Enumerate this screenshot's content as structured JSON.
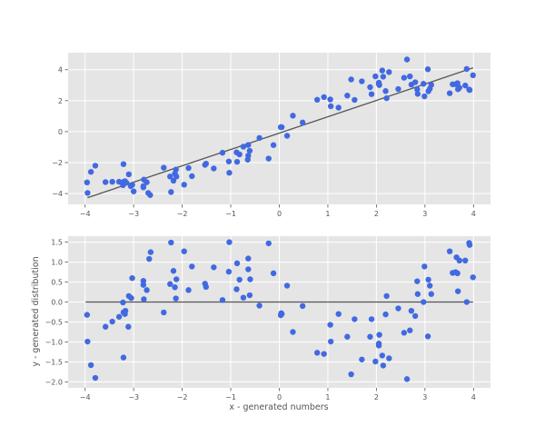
{
  "chart_data": [
    {
      "type": "scatter",
      "title": "",
      "xlabel": "",
      "ylabel": "",
      "xlim": [
        -4.35,
        4.35
      ],
      "ylim": [
        -4.7,
        5.1
      ],
      "xticks": [
        -4,
        -3,
        -2,
        -1,
        0,
        1,
        2,
        3,
        4
      ],
      "yticks": [
        -4,
        -2,
        0,
        2,
        4
      ],
      "grid": true,
      "style": "ggplot",
      "marker_color": "#4169e1",
      "line": {
        "name": "fit",
        "color": "#555555",
        "x": [
          -3.95,
          3.99
        ],
        "y": [
          -4.27,
          4.12
        ]
      },
      "x": [
        -3.96,
        -3.95,
        -3.88,
        -3.79,
        -3.58,
        -3.44,
        -3.3,
        -3.22,
        -3.21,
        -3.18,
        -3.21,
        -3.15,
        -3.1,
        -3.06,
        -3.03,
        -3.0,
        -2.8,
        -2.8,
        -2.79,
        -2.73,
        -2.7,
        -2.66,
        -2.38,
        -2.25,
        -2.23,
        -2.18,
        -2.15,
        -2.13,
        -2.12,
        -1.96,
        -1.87,
        -1.8,
        -1.53,
        -1.51,
        -1.35,
        -1.17,
        -1.04,
        -1.03,
        -0.88,
        -0.87,
        -0.82,
        -0.74,
        -0.64,
        -0.64,
        -0.61,
        -0.65,
        -0.41,
        -0.22,
        -0.12,
        0.03,
        0.05,
        0.16,
        0.28,
        0.48,
        0.78,
        0.92,
        1.05,
        1.06,
        1.22,
        1.4,
        1.48,
        1.55,
        1.7,
        1.87,
        1.9,
        1.98,
        2.05,
        2.06,
        2.05,
        2.12,
        2.14,
        2.19,
        2.21,
        2.26,
        2.45,
        2.57,
        2.63,
        2.69,
        2.72,
        2.8,
        2.84,
        2.85,
        2.97,
        2.99,
        3.06,
        3.07,
        3.1,
        3.13,
        3.51,
        3.57,
        3.63,
        3.67,
        3.68,
        3.71,
        3.83,
        3.86,
        3.91,
        3.92,
        3.99
      ],
      "y": [
        -3.28,
        -3.96,
        -2.6,
        -2.2,
        -3.26,
        -3.24,
        -3.24,
        -3.46,
        -2.1,
        -3.2,
        -3.25,
        -3.3,
        -2.76,
        -3.52,
        -3.44,
        -3.86,
        -3.6,
        -3.52,
        -3.1,
        -3.27,
        -3.96,
        -4.1,
        -2.33,
        -2.9,
        -3.9,
        -3.17,
        -2.71,
        -2.45,
        -2.9,
        -3.43,
        -2.35,
        -2.88,
        -2.15,
        -2.07,
        -2.38,
        -1.36,
        -1.93,
        -2.66,
        -1.34,
        -1.95,
        -1.47,
        -0.97,
        -1.55,
        -0.86,
        -1.24,
        -1.81,
        -0.41,
        -1.74,
        -0.87,
        0.29,
        0.29,
        -0.27,
        1.03,
        0.59,
        2.06,
        2.23,
        2.08,
        1.64,
        1.55,
        2.33,
        3.37,
        2.05,
        3.25,
        2.87,
        2.42,
        3.57,
        3.16,
        3.01,
        3.08,
        3.95,
        3.55,
        2.62,
        2.16,
        3.85,
        2.75,
        3.48,
        4.66,
        3.57,
        3.04,
        3.19,
        2.73,
        2.44,
        3.09,
        2.28,
        4.03,
        2.61,
        2.77,
        3.02,
        2.48,
        3.06,
        3.06,
        3.13,
        2.74,
        2.84,
        2.98,
        4.05,
        2.72,
        2.69,
        3.64
      ]
    },
    {
      "type": "scatter",
      "title": "",
      "xlabel": "x - generated numbers",
      "ylabel": "y - generated distribution",
      "xlim": [
        -4.35,
        4.35
      ],
      "ylim": [
        -2.15,
        1.65
      ],
      "xticks": [
        -4,
        -3,
        -2,
        -1,
        0,
        1,
        2,
        3,
        4
      ],
      "yticks": [
        -2.0,
        -1.5,
        -1.0,
        -0.5,
        0.0,
        0.5,
        1.0,
        1.5
      ],
      "grid": true,
      "style": "ggplot",
      "marker_color": "#4169e1",
      "line": {
        "name": "zero",
        "color": "#555555",
        "x": [
          -3.99,
          3.99
        ],
        "y": [
          0.0,
          0.0
        ]
      },
      "x": [
        -3.96,
        -3.95,
        -3.88,
        -3.79,
        -3.58,
        -3.44,
        -3.3,
        -3.22,
        -3.21,
        -3.18,
        -3.17,
        -3.21,
        -3.1,
        -3.11,
        -3.05,
        -3.03,
        -2.8,
        -2.8,
        -2.79,
        -2.73,
        -2.68,
        -2.65,
        -2.38,
        -2.25,
        -2.23,
        -2.18,
        -2.15,
        -2.13,
        -2.12,
        -1.96,
        -1.87,
        -1.8,
        -1.53,
        -1.51,
        -1.35,
        -1.17,
        -1.04,
        -1.03,
        -0.88,
        -0.87,
        -0.82,
        -0.74,
        -0.64,
        -0.64,
        -0.61,
        -0.6,
        -0.41,
        -0.22,
        -0.12,
        0.03,
        0.04,
        0.05,
        0.16,
        0.28,
        0.48,
        0.78,
        0.92,
        1.05,
        1.06,
        1.22,
        1.4,
        1.48,
        1.55,
        1.7,
        1.87,
        1.9,
        1.98,
        2.05,
        2.06,
        2.05,
        2.12,
        2.14,
        2.19,
        2.21,
        2.26,
        2.45,
        2.57,
        2.63,
        2.69,
        2.72,
        2.8,
        2.84,
        2.85,
        2.97,
        2.99,
        3.06,
        3.07,
        3.1,
        3.13,
        3.51,
        3.57,
        3.63,
        3.65,
        3.67,
        3.68,
        3.71,
        3.83,
        3.86,
        3.91,
        3.92,
        3.99
      ],
      "y": [
        -0.32,
        -0.99,
        -1.58,
        -1.9,
        -0.62,
        -0.49,
        -0.37,
        -0.01,
        -1.39,
        -0.3,
        -0.22,
        -0.26,
        0.15,
        -0.62,
        0.1,
        0.6,
        0.53,
        0.43,
        0.07,
        0.3,
        1.08,
        1.25,
        -0.26,
        0.45,
        1.49,
        0.78,
        0.37,
        0.09,
        0.57,
        1.27,
        0.3,
        0.89,
        0.46,
        0.38,
        0.87,
        0.05,
        0.76,
        1.5,
        0.32,
        0.97,
        0.56,
        0.11,
        1.09,
        0.82,
        0.17,
        0.57,
        -0.09,
        1.47,
        0.72,
        -0.33,
        -0.28,
        -0.3,
        0.41,
        -0.75,
        -0.1,
        -1.27,
        -1.3,
        -0.57,
        -0.99,
        -0.3,
        -0.87,
        -1.81,
        -0.43,
        -1.44,
        -0.87,
        -0.43,
        -1.49,
        -1.04,
        -0.82,
        -1.09,
        -1.34,
        -1.59,
        -0.31,
        0.15,
        -1.41,
        -0.16,
        -0.77,
        -1.93,
        -0.71,
        -0.22,
        -0.35,
        0.52,
        0.2,
        0.0,
        0.89,
        -0.86,
        0.56,
        0.41,
        0.2,
        1.27,
        0.73,
        0.75,
        1.12,
        0.72,
        0.27,
        1.04,
        1.04,
        0.0,
        1.48,
        1.43,
        0.62
      ]
    }
  ]
}
